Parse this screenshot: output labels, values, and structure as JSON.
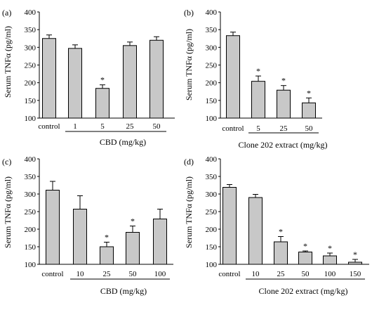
{
  "chart_data": [
    {
      "panel": "(a)",
      "type": "bar",
      "ylabel": "Serum TNFα (pg/ml)",
      "xlabel": "CBD (mg/kg)",
      "ylim": [
        100,
        400
      ],
      "yticks": [
        "100",
        "150",
        "200",
        "250",
        "300",
        "350",
        "400"
      ],
      "categories": [
        "control",
        "1",
        "5",
        "25",
        "50"
      ],
      "values": [
        325,
        297,
        184,
        305,
        320
      ],
      "errors": [
        10,
        10,
        10,
        10,
        10
      ],
      "significance": [
        "",
        "",
        "*",
        "",
        ""
      ],
      "bar_color": "#c8c8c8"
    },
    {
      "panel": "(b)",
      "type": "bar",
      "ylabel": "Serum TNFα (pg/ml)",
      "xlabel": "Clone 202 extract (mg/kg)",
      "ylim": [
        100,
        400
      ],
      "yticks": [
        "100",
        "150",
        "200",
        "250",
        "300",
        "350",
        "400"
      ],
      "categories": [
        "control",
        "5",
        "25",
        "50"
      ],
      "values": [
        333,
        204,
        179,
        143
      ],
      "errors": [
        10,
        15,
        13,
        14
      ],
      "significance": [
        "",
        "*",
        "*",
        "*"
      ],
      "bar_color": "#c8c8c8"
    },
    {
      "panel": "(c)",
      "type": "bar",
      "ylabel": "Serum TNFα (pg/ml)",
      "xlabel": "CBD (mg/kg)",
      "ylim": [
        100,
        400
      ],
      "yticks": [
        "100",
        "150",
        "200",
        "250",
        "300",
        "350",
        "400"
      ],
      "categories": [
        "control",
        "10",
        "25",
        "50",
        "100"
      ],
      "values": [
        311,
        257,
        150,
        191,
        229
      ],
      "errors": [
        25,
        38,
        13,
        18,
        28
      ],
      "significance": [
        "",
        "",
        "*",
        "*",
        ""
      ],
      "bar_color": "#c8c8c8"
    },
    {
      "panel": "(d)",
      "type": "bar",
      "ylabel": "Serum TNFα (pg/ml)",
      "xlabel": "Clone 202 extract (mg/kg)",
      "ylim": [
        100,
        400
      ],
      "yticks": [
        "100",
        "150",
        "200",
        "250",
        "300",
        "350",
        "400"
      ],
      "categories": [
        "control",
        "10",
        "25",
        "50",
        "100",
        "150"
      ],
      "values": [
        319,
        290,
        164,
        135,
        124,
        106
      ],
      "errors": [
        8,
        9,
        15,
        3,
        8,
        8
      ],
      "significance": [
        "",
        "",
        "*",
        "*",
        "*",
        "*"
      ],
      "bar_color": "#c8c8c8"
    }
  ]
}
